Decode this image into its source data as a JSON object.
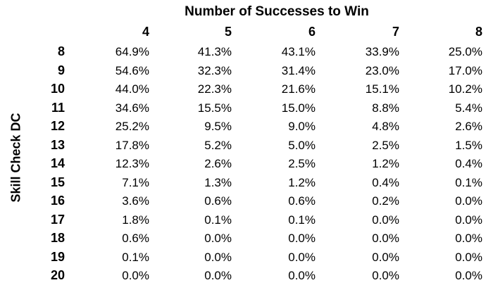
{
  "chart_data": {
    "type": "table",
    "col_title": "Number of Successes to Win",
    "row_title": "Skill Check DC",
    "columns": [
      "4",
      "5",
      "6",
      "7",
      "8"
    ],
    "rows": [
      "8",
      "9",
      "10",
      "11",
      "12",
      "13",
      "14",
      "15",
      "16",
      "17",
      "18",
      "19",
      "20"
    ],
    "values": [
      [
        "64.9%",
        "41.3%",
        "43.1%",
        "33.9%",
        "25.0%"
      ],
      [
        "54.6%",
        "32.3%",
        "31.4%",
        "23.0%",
        "17.0%"
      ],
      [
        "44.0%",
        "22.3%",
        "21.6%",
        "15.1%",
        "10.2%"
      ],
      [
        "34.6%",
        "15.5%",
        "15.0%",
        "8.8%",
        "5.4%"
      ],
      [
        "25.2%",
        "9.5%",
        "9.0%",
        "4.8%",
        "2.6%"
      ],
      [
        "17.8%",
        "5.2%",
        "5.0%",
        "2.5%",
        "1.5%"
      ],
      [
        "12.3%",
        "2.6%",
        "2.5%",
        "1.2%",
        "0.4%"
      ],
      [
        "7.1%",
        "1.3%",
        "1.2%",
        "0.4%",
        "0.1%"
      ],
      [
        "3.6%",
        "0.6%",
        "0.6%",
        "0.2%",
        "0.0%"
      ],
      [
        "1.8%",
        "0.1%",
        "0.1%",
        "0.0%",
        "0.0%"
      ],
      [
        "0.6%",
        "0.0%",
        "0.0%",
        "0.0%",
        "0.0%"
      ],
      [
        "0.1%",
        "0.0%",
        "0.0%",
        "0.0%",
        "0.0%"
      ],
      [
        "0.0%",
        "0.0%",
        "0.0%",
        "0.0%",
        "0.0%"
      ]
    ]
  }
}
